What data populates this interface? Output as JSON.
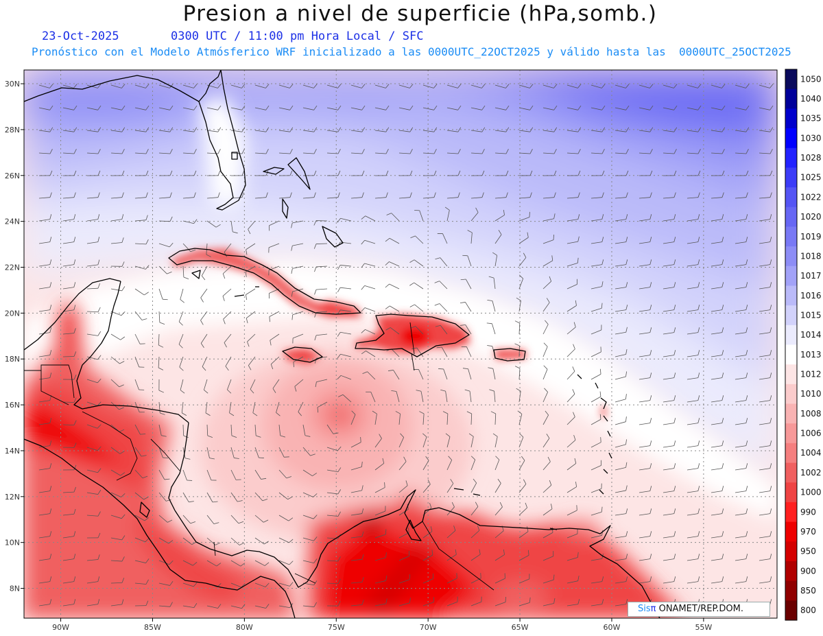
{
  "header": {
    "title": "Presion a nivel de superficie (hPa,somb.)",
    "date": "23-Oct-2025",
    "valid_time": "0300 UTC / 11:00 pm Hora Local / SFC",
    "model_line": "Pronóstico con el Modelo Atmósferico WRF inicializado a las 0000UTC_22OCT2025 y válido hasta las  0000UTC_25OCT2025"
  },
  "axes": {
    "lon_ticks": [
      "90W",
      "85W",
      "80W",
      "75W",
      "70W",
      "65W",
      "60W",
      "55W"
    ],
    "lat_ticks": [
      "30N",
      "28N",
      "26N",
      "24N",
      "22N",
      "20N",
      "18N",
      "16N",
      "14N",
      "12N",
      "10N",
      "8N"
    ],
    "lon_range": [
      -92,
      -51
    ],
    "lat_range": [
      6.7,
      30.6
    ],
    "grid": "dotted"
  },
  "colorbar": {
    "levels": [
      "1050",
      "1040",
      "1035",
      "1030",
      "1028",
      "1025",
      "1022",
      "1020",
      "1019",
      "1018",
      "1017",
      "1016",
      "1015",
      "1014",
      "1013",
      "1012",
      "1010",
      "1008",
      "1006",
      "1004",
      "1002",
      "1000",
      "990",
      "970",
      "950",
      "900",
      "850",
      "800"
    ],
    "colors": [
      "#0a0a5c",
      "#00009a",
      "#0000cc",
      "#0000ff",
      "#2222ff",
      "#3c3cf7",
      "#5555f4",
      "#6767f4",
      "#7979f5",
      "#8d8df6",
      "#a2a2f8",
      "#babaf9",
      "#d2d2fb",
      "#ebebfd",
      "#ffffff",
      "#fde5e5",
      "#fbcccc",
      "#f9b3b3",
      "#f79999",
      "#f57f7f",
      "#f06060",
      "#ef4444",
      "#ff2020",
      "#ee0000",
      "#d40000",
      "#b00000",
      "#900000",
      "#6a0000"
    ]
  },
  "features": {
    "low_center": {
      "lon": -75,
      "lat": 15.4
    }
  },
  "credit": {
    "sis": "Sis",
    "pi": "π",
    "org": " ONAMET/REP.DOM."
  },
  "colors": {
    "title": "#111111",
    "subtitle": "#1c30e6",
    "model_line": "#1a8cf5",
    "land_outline": "#000000",
    "barb": "#555555"
  }
}
